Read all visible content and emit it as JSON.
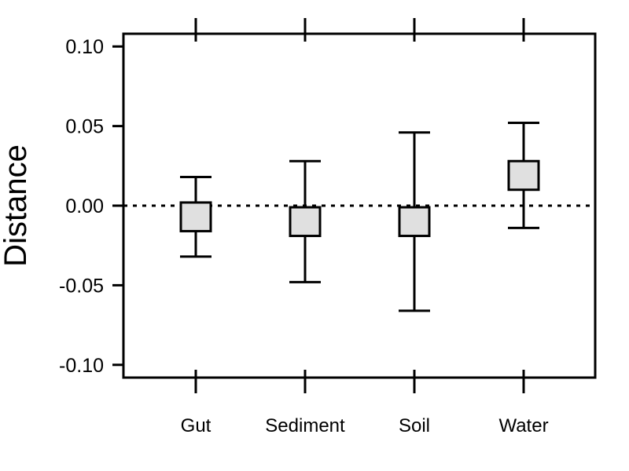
{
  "chart_data": {
    "type": "errorbar",
    "ylabel": "Distance",
    "xlabel": "",
    "ylim": [
      -0.108,
      0.108
    ],
    "yticks": [
      "0.10",
      "0.05",
      "0.00",
      "-0.05",
      "-0.10"
    ],
    "ytick_values": [
      0.1,
      0.05,
      0.0,
      -0.05,
      -0.1
    ],
    "reference_line": 0.0,
    "categories": [
      "Gut",
      "Sediment",
      "Soil",
      "Water"
    ],
    "series": [
      {
        "box_low": [
          -0.016,
          -0.019,
          -0.019,
          0.01
        ],
        "box_high": [
          0.002,
          -0.001,
          -0.001,
          0.028
        ],
        "whisker_low": [
          -0.032,
          -0.048,
          -0.066,
          -0.014
        ],
        "whisker_high": [
          0.018,
          0.028,
          0.046,
          0.052
        ]
      }
    ],
    "box_color": "#e0e0e0",
    "line_color": "#000000",
    "grid": false
  }
}
